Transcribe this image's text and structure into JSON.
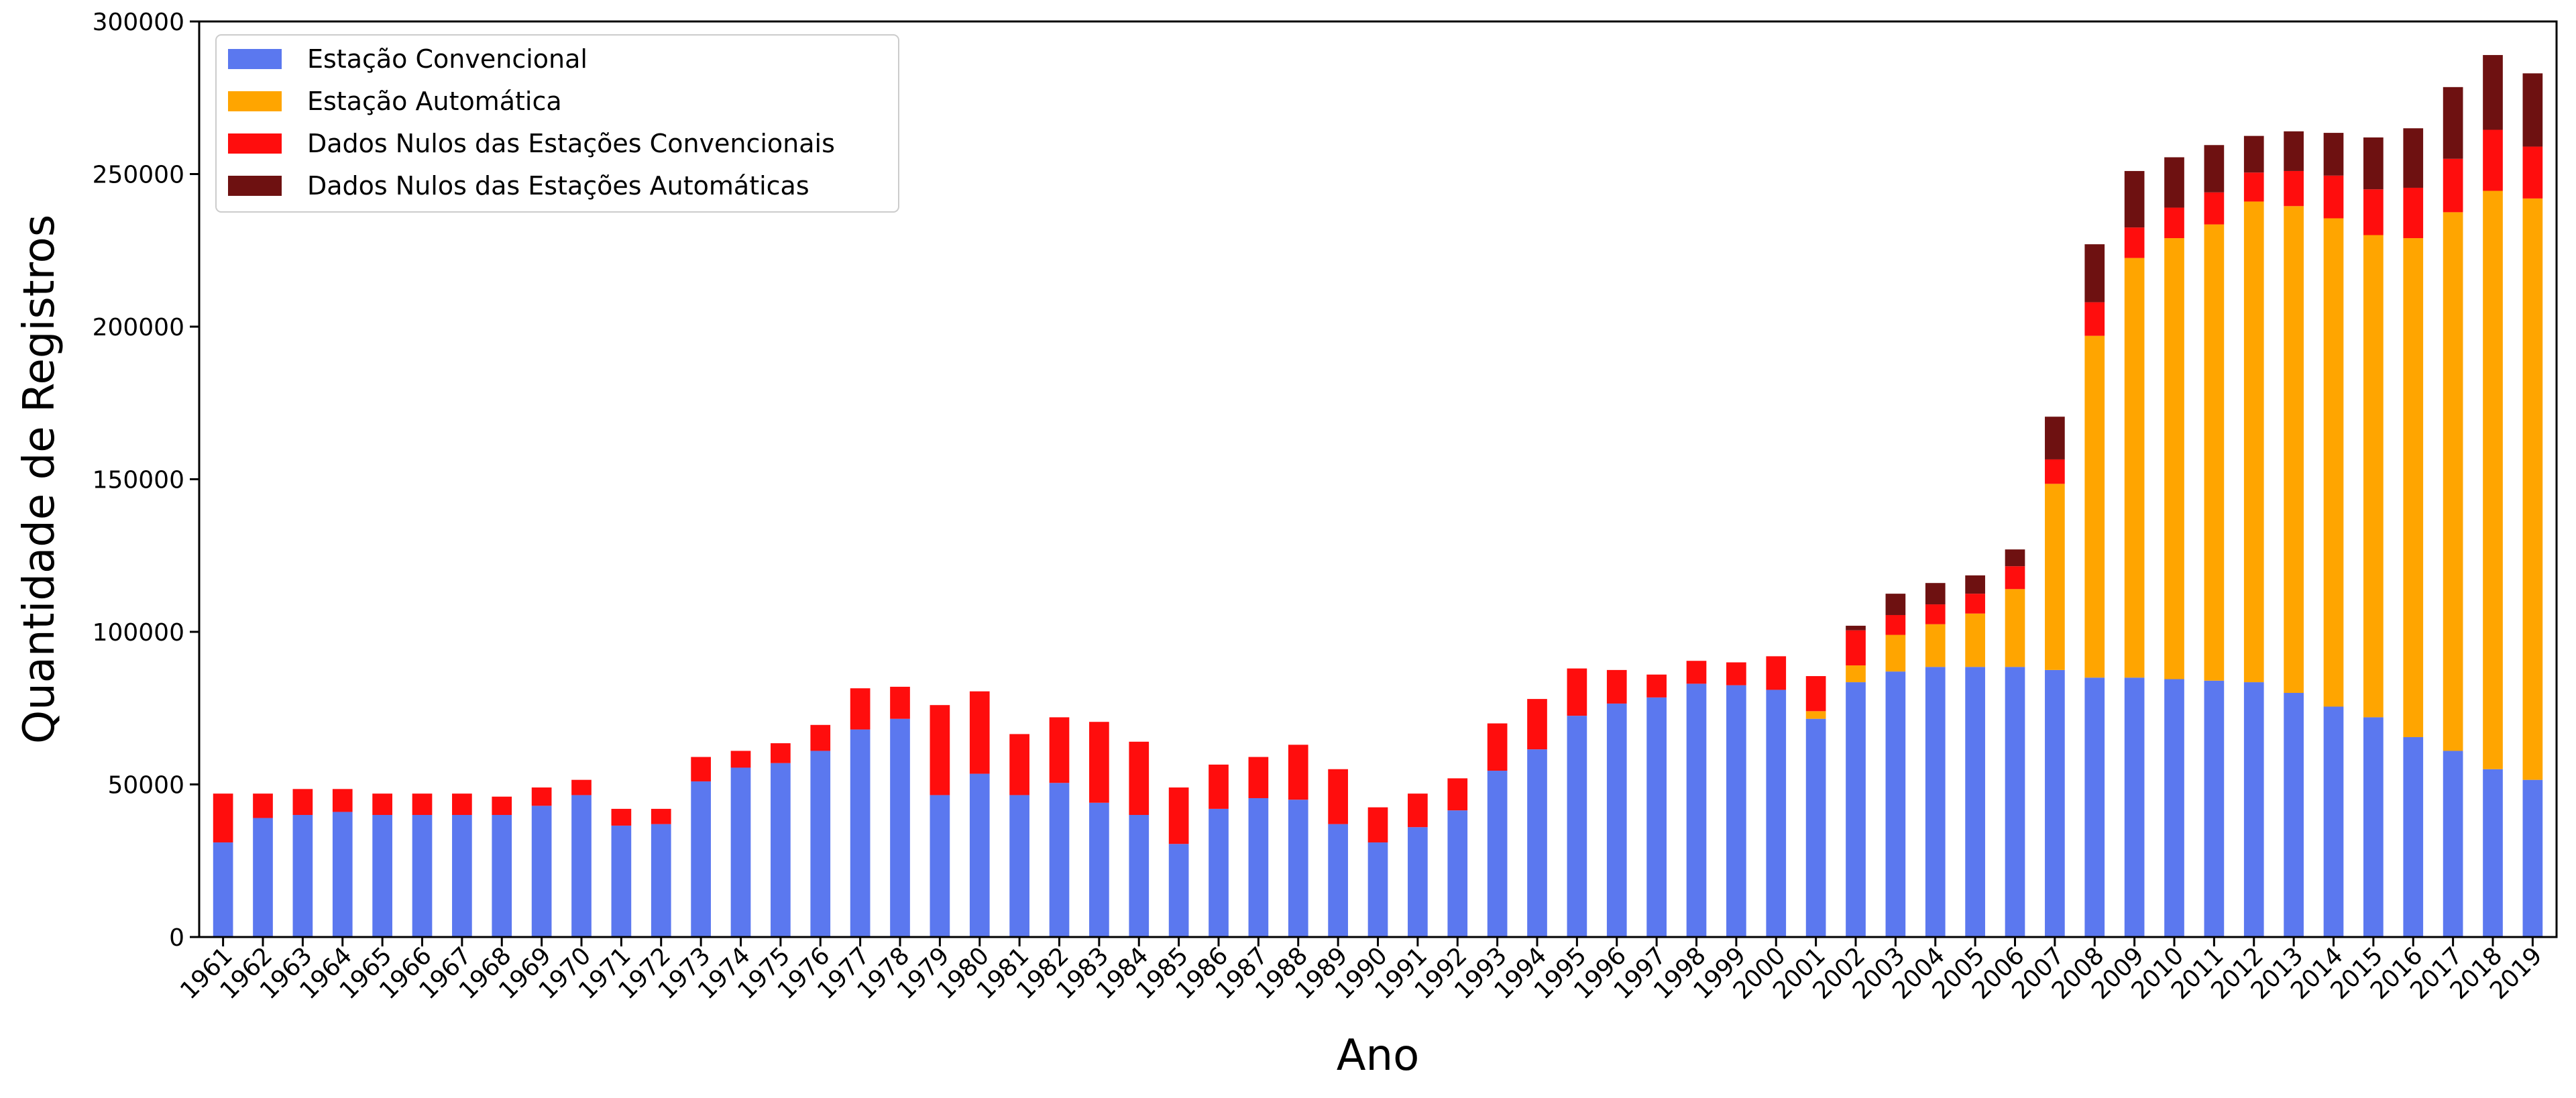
{
  "chart_data": {
    "type": "bar",
    "stacked": true,
    "title": "",
    "xlabel": "Ano",
    "ylabel": "Quantidade de Registros",
    "ylim": [
      0,
      300000
    ],
    "yticks": [
      0,
      50000,
      100000,
      150000,
      200000,
      250000,
      300000
    ],
    "ytick_labels": [
      "0",
      "50000",
      "100000",
      "150000",
      "200000",
      "250000",
      "300000"
    ],
    "grid": false,
    "legend_position": "top-left",
    "categories": [
      "1961",
      "1962",
      "1963",
      "1964",
      "1965",
      "1966",
      "1967",
      "1968",
      "1969",
      "1970",
      "1971",
      "1972",
      "1973",
      "1974",
      "1975",
      "1976",
      "1977",
      "1978",
      "1979",
      "1980",
      "1981",
      "1982",
      "1983",
      "1984",
      "1985",
      "1986",
      "1987",
      "1988",
      "1989",
      "1990",
      "1991",
      "1992",
      "1993",
      "1994",
      "1995",
      "1996",
      "1997",
      "1998",
      "1999",
      "2000",
      "2001",
      "2002",
      "2003",
      "2004",
      "2005",
      "2006",
      "2007",
      "2008",
      "2009",
      "2010",
      "2011",
      "2012",
      "2013",
      "2014",
      "2015",
      "2016",
      "2017",
      "2018",
      "2019"
    ],
    "series": [
      {
        "name": "Estação Convencional",
        "color": "#5b78ef",
        "values": [
          31000,
          39000,
          40000,
          41000,
          40000,
          40000,
          40000,
          40000,
          43000,
          46500,
          36500,
          37000,
          51000,
          55500,
          57000,
          61000,
          68000,
          71500,
          46500,
          53500,
          46500,
          50500,
          44000,
          40000,
          30500,
          42000,
          45500,
          45000,
          37000,
          31000,
          36000,
          41500,
          54500,
          61500,
          72500,
          76500,
          78500,
          83000,
          82500,
          81000,
          71500,
          83500,
          87000,
          88500,
          88500,
          88500,
          87500,
          85000,
          85000,
          84500,
          84000,
          83500,
          80000,
          75500,
          72000,
          65500,
          61000,
          55000,
          51500
        ]
      },
      {
        "name": "Estação Automática",
        "color": "#ffa500",
        "values": [
          0,
          0,
          0,
          0,
          0,
          0,
          0,
          0,
          0,
          0,
          0,
          0,
          0,
          0,
          0,
          0,
          0,
          0,
          0,
          0,
          0,
          0,
          0,
          0,
          0,
          0,
          0,
          0,
          0,
          0,
          0,
          0,
          0,
          0,
          0,
          0,
          0,
          0,
          0,
          0,
          2500,
          5500,
          12000,
          14000,
          17500,
          25500,
          61000,
          112000,
          137500,
          144500,
          149500,
          157500,
          159500,
          160000,
          158000,
          163500,
          176500,
          189500,
          190500
        ]
      },
      {
        "name": "Dados Nulos das Estações Convencionais",
        "color": "#ff0d0d",
        "values": [
          16000,
          8000,
          8500,
          7500,
          7000,
          7000,
          7000,
          6000,
          6000,
          5000,
          5500,
          5000,
          8000,
          5500,
          6500,
          8500,
          13500,
          10500,
          29500,
          27000,
          20000,
          21500,
          26500,
          24000,
          18500,
          14500,
          13500,
          18000,
          18000,
          11500,
          11000,
          10500,
          15500,
          16500,
          15500,
          11000,
          7500,
          7500,
          7500,
          11000,
          11500,
          11500,
          6500,
          6500,
          6500,
          7500,
          8000,
          11000,
          10000,
          10000,
          10500,
          9500,
          11500,
          14000,
          15000,
          16500,
          17500,
          20000,
          17000
        ]
      },
      {
        "name": "Dados Nulos das Estações Automáticas",
        "color": "#6e1111",
        "values": [
          0,
          0,
          0,
          0,
          0,
          0,
          0,
          0,
          0,
          0,
          0,
          0,
          0,
          0,
          0,
          0,
          0,
          0,
          0,
          0,
          0,
          0,
          0,
          0,
          0,
          0,
          0,
          0,
          0,
          0,
          0,
          0,
          0,
          0,
          0,
          0,
          0,
          0,
          0,
          0,
          0,
          1500,
          7000,
          7000,
          6000,
          5500,
          14000,
          19000,
          18500,
          16500,
          15500,
          12000,
          13000,
          14000,
          17000,
          19500,
          23500,
          24500,
          24000
        ]
      }
    ]
  }
}
